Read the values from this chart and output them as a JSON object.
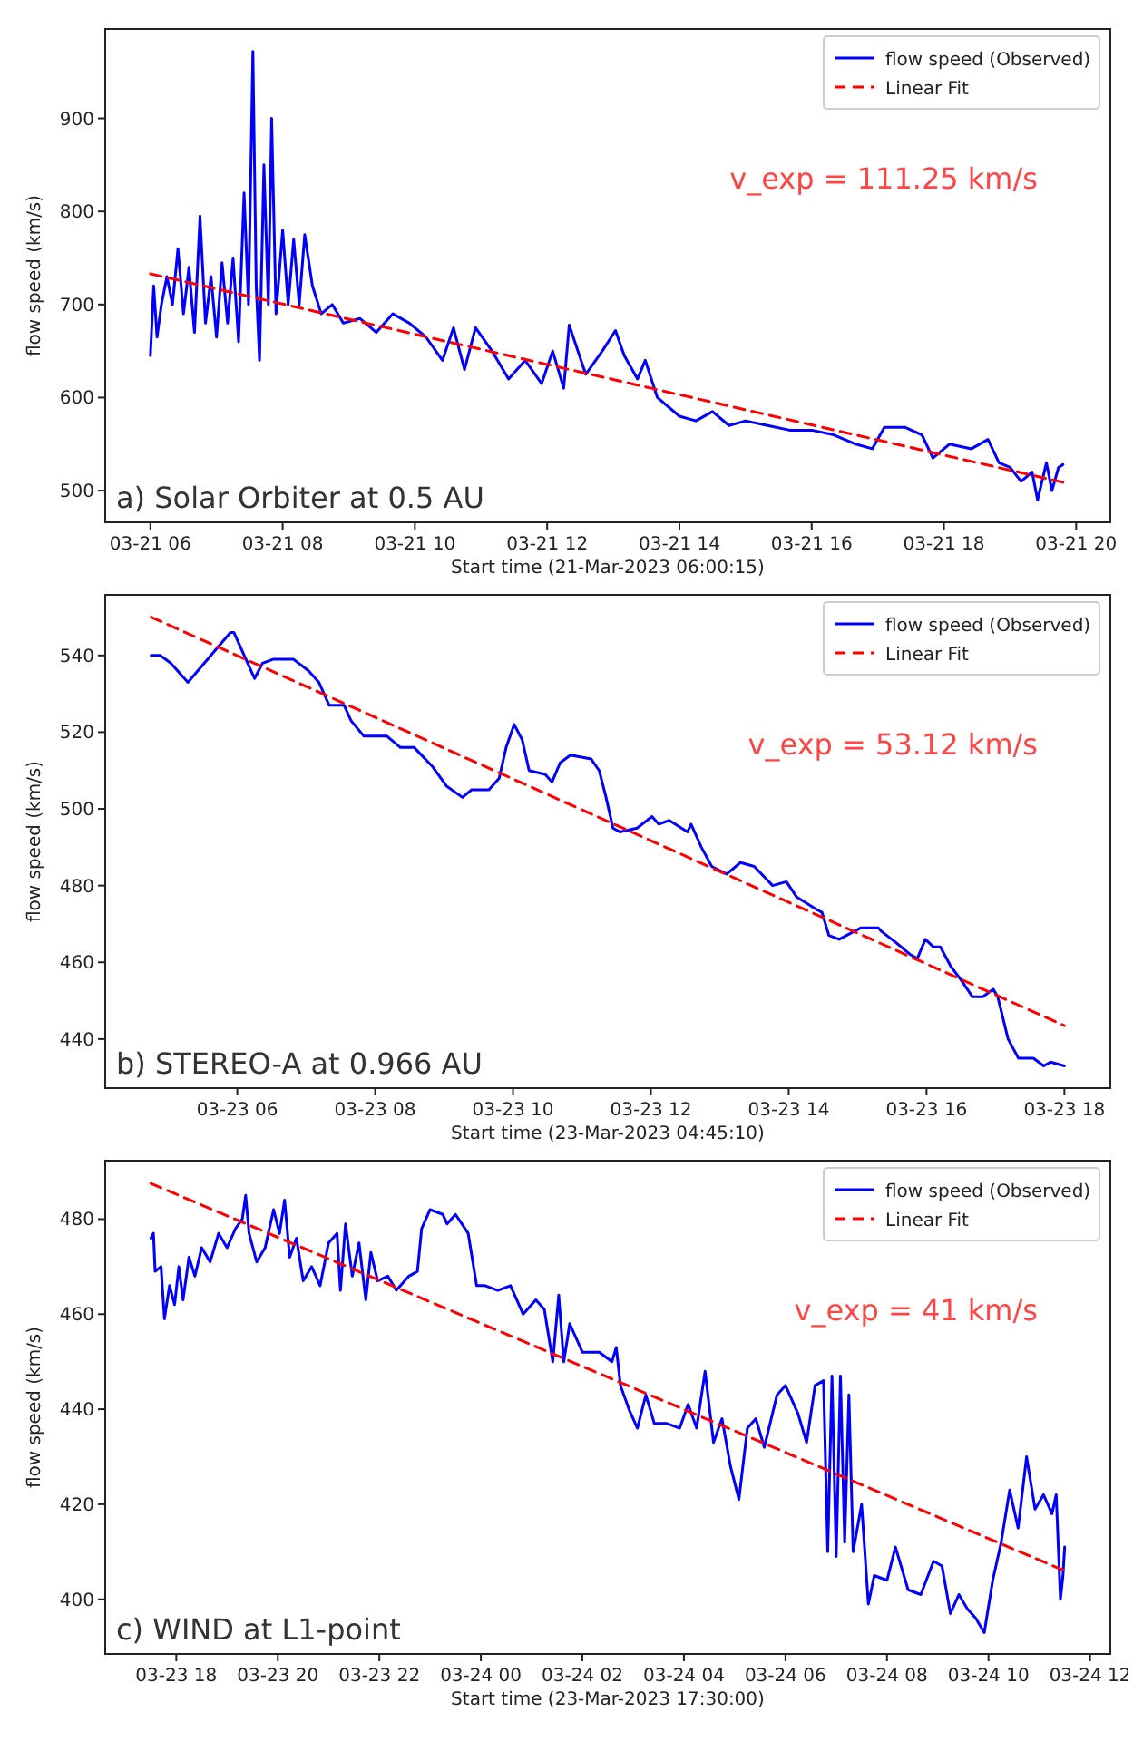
{
  "chart_data": [
    {
      "type": "line",
      "xlabel": "Start time (21-Mar-2023 06:00:15)",
      "ylabel": "flow speed (km/s)",
      "legend": "top right",
      "xlim": [
        "2023-03-21T05:19",
        "2023-03-21T20:31"
      ],
      "ylim": [
        466,
        996
      ],
      "yticks": [
        500,
        600,
        700,
        800,
        900
      ],
      "xticks": [
        {
          "value": "2023-03-21T06:00",
          "label": "03-21 06"
        },
        {
          "value": "2023-03-21T08:00",
          "label": "03-21 08"
        },
        {
          "value": "2023-03-21T10:00",
          "label": "03-21 10"
        },
        {
          "value": "2023-03-21T12:00",
          "label": "03-21 12"
        },
        {
          "value": "2023-03-21T14:00",
          "label": "03-21 14"
        },
        {
          "value": "2023-03-21T16:00",
          "label": "03-21 16"
        },
        {
          "value": "2023-03-21T18:00",
          "label": "03-21 18"
        },
        {
          "value": "2023-03-21T20:00",
          "label": "03-21 20"
        }
      ],
      "annotations": [
        "v_exp = 111.25 km/s",
        "a) Solar Orbiter at 0.5 AU"
      ],
      "series": [
        {
          "name": "flow speed (Observed)",
          "color": "#0000ff",
          "line_style": "solid",
          "x": [
            "2023-03-21T06:00",
            "2023-03-21T06:03",
            "2023-03-21T06:06",
            "2023-03-21T06:10",
            "2023-03-21T06:15",
            "2023-03-21T06:20",
            "2023-03-21T06:25",
            "2023-03-21T06:30",
            "2023-03-21T06:35",
            "2023-03-21T06:40",
            "2023-03-21T06:45",
            "2023-03-21T06:50",
            "2023-03-21T06:55",
            "2023-03-21T07:00",
            "2023-03-21T07:05",
            "2023-03-21T07:10",
            "2023-03-21T07:15",
            "2023-03-21T07:20",
            "2023-03-21T07:25",
            "2023-03-21T07:29",
            "2023-03-21T07:33",
            "2023-03-21T07:36",
            "2023-03-21T07:39",
            "2023-03-21T07:43",
            "2023-03-21T07:47",
            "2023-03-21T07:50",
            "2023-03-21T07:54",
            "2023-03-21T08:00",
            "2023-03-21T08:05",
            "2023-03-21T08:10",
            "2023-03-21T08:15",
            "2023-03-21T08:20",
            "2023-03-21T08:27",
            "2023-03-21T08:35",
            "2023-03-21T08:45",
            "2023-03-21T08:55",
            "2023-03-21T09:10",
            "2023-03-21T09:25",
            "2023-03-21T09:40",
            "2023-03-21T09:55",
            "2023-03-21T10:10",
            "2023-03-21T10:25",
            "2023-03-21T10:35",
            "2023-03-21T10:45",
            "2023-03-21T10:55",
            "2023-03-21T11:10",
            "2023-03-21T11:25",
            "2023-03-21T11:40",
            "2023-03-21T11:55",
            "2023-03-21T12:05",
            "2023-03-21T12:15",
            "2023-03-21T12:20",
            "2023-03-21T12:35",
            "2023-03-21T12:50",
            "2023-03-21T13:02",
            "2023-03-21T13:10",
            "2023-03-21T13:22",
            "2023-03-21T13:29",
            "2023-03-21T13:40",
            "2023-03-21T14:00",
            "2023-03-21T14:15",
            "2023-03-21T14:30",
            "2023-03-21T14:45",
            "2023-03-21T15:00",
            "2023-03-21T15:20",
            "2023-03-21T15:40",
            "2023-03-21T16:00",
            "2023-03-21T16:20",
            "2023-03-21T16:40",
            "2023-03-21T16:55",
            "2023-03-21T17:06",
            "2023-03-21T17:25",
            "2023-03-21T17:40",
            "2023-03-21T17:50",
            "2023-03-21T18:05",
            "2023-03-21T18:25",
            "2023-03-21T18:40",
            "2023-03-21T18:50",
            "2023-03-21T19:00",
            "2023-03-21T19:10",
            "2023-03-21T19:20",
            "2023-03-21T19:25",
            "2023-03-21T19:33",
            "2023-03-21T19:38",
            "2023-03-21T19:44",
            "2023-03-21T19:48"
          ],
          "values": [
            645,
            720,
            665,
            700,
            730,
            700,
            760,
            690,
            740,
            670,
            795,
            680,
            730,
            665,
            745,
            680,
            750,
            660,
            820,
            700,
            972,
            720,
            640,
            850,
            700,
            900,
            690,
            780,
            700,
            770,
            700,
            775,
            720,
            690,
            700,
            680,
            685,
            670,
            690,
            680,
            665,
            640,
            675,
            630,
            675,
            650,
            620,
            640,
            615,
            650,
            610,
            678,
            625,
            650,
            672,
            645,
            620,
            640,
            600,
            580,
            575,
            585,
            570,
            575,
            570,
            565,
            565,
            560,
            550,
            545,
            568,
            568,
            560,
            535,
            550,
            545,
            555,
            530,
            525,
            510,
            520,
            490,
            530,
            500,
            525,
            528
          ]
        },
        {
          "name": "Linear Fit",
          "color": "#ff0000",
          "line_style": "dashed",
          "x": [
            "2023-03-21T06:00",
            "2023-03-21T19:48"
          ],
          "values": [
            733,
            509
          ]
        }
      ]
    },
    {
      "type": "line",
      "xlabel": "Start time (23-Mar-2023 04:45:10)",
      "ylabel": "flow speed (km/s)",
      "legend": "top right",
      "xlim": [
        "2023-03-23T04:05",
        "2023-03-23T18:40"
      ],
      "ylim": [
        427.2,
        555.8
      ],
      "yticks": [
        440,
        460,
        480,
        500,
        520,
        540
      ],
      "xticks": [
        {
          "value": "2023-03-23T06:00",
          "label": "03-23 06"
        },
        {
          "value": "2023-03-23T08:00",
          "label": "03-23 08"
        },
        {
          "value": "2023-03-23T10:00",
          "label": "03-23 10"
        },
        {
          "value": "2023-03-23T12:00",
          "label": "03-23 12"
        },
        {
          "value": "2023-03-23T14:00",
          "label": "03-23 14"
        },
        {
          "value": "2023-03-23T16:00",
          "label": "03-23 16"
        },
        {
          "value": "2023-03-23T18:00",
          "label": "03-23 18"
        }
      ],
      "annotations": [
        "v_exp = 53.12 km/s",
        "b) STEREO-A at 0.966 AU"
      ],
      "series": [
        {
          "name": "flow speed (Observed)",
          "color": "#0000ff",
          "line_style": "solid",
          "x": [
            "2023-03-23T04:45",
            "2023-03-23T04:53",
            "2023-03-23T05:02",
            "2023-03-23T05:17",
            "2023-03-23T05:54",
            "2023-03-23T05:57",
            "2023-03-23T06:06",
            "2023-03-23T06:15",
            "2023-03-23T06:22",
            "2023-03-23T06:31",
            "2023-03-23T06:49",
            "2023-03-23T07:02",
            "2023-03-23T07:11",
            "2023-03-23T07:20",
            "2023-03-23T07:33",
            "2023-03-23T07:39",
            "2023-03-23T07:50",
            "2023-03-23T08:10",
            "2023-03-23T08:22",
            "2023-03-23T08:34",
            "2023-03-23T08:50",
            "2023-03-23T09:02",
            "2023-03-23T09:16",
            "2023-03-23T09:24",
            "2023-03-23T09:39",
            "2023-03-23T09:48",
            "2023-03-23T09:54",
            "2023-03-23T10:01",
            "2023-03-23T10:08",
            "2023-03-23T10:14",
            "2023-03-23T10:28",
            "2023-03-23T10:34",
            "2023-03-23T10:41",
            "2023-03-23T10:50",
            "2023-03-23T11:08",
            "2023-03-23T11:15",
            "2023-03-23T11:21",
            "2023-03-23T11:27",
            "2023-03-23T11:33",
            "2023-03-23T11:48",
            "2023-03-23T12:01",
            "2023-03-23T12:07",
            "2023-03-23T12:16",
            "2023-03-23T12:32",
            "2023-03-23T12:35",
            "2023-03-23T12:44",
            "2023-03-23T12:53",
            "2023-03-23T13:06",
            "2023-03-23T13:18",
            "2023-03-23T13:30",
            "2023-03-23T13:46",
            "2023-03-23T13:58",
            "2023-03-23T14:07",
            "2023-03-23T14:23",
            "2023-03-23T14:29",
            "2023-03-23T14:35",
            "2023-03-23T14:44",
            "2023-03-23T15:03",
            "2023-03-23T15:18",
            "2023-03-23T15:21",
            "2023-03-23T15:34",
            "2023-03-23T15:46",
            "2023-03-23T15:52",
            "2023-03-23T15:59",
            "2023-03-23T16:06",
            "2023-03-23T16:12",
            "2023-03-23T16:21",
            "2023-03-23T16:31",
            "2023-03-23T16:40",
            "2023-03-23T16:49",
            "2023-03-23T16:58",
            "2023-03-23T17:02",
            "2023-03-23T17:11",
            "2023-03-23T17:20",
            "2023-03-23T17:33",
            "2023-03-23T17:42",
            "2023-03-23T17:48",
            "2023-03-23T18:00"
          ],
          "values": [
            540,
            540,
            538,
            533,
            546,
            546,
            540,
            534,
            538,
            539,
            539,
            536,
            533,
            527,
            527,
            523,
            519,
            519,
            516,
            516,
            511,
            506,
            503,
            505,
            505,
            508,
            516,
            522,
            518,
            510,
            509,
            507,
            512,
            514,
            513,
            510,
            503,
            495,
            494,
            495,
            498,
            496,
            497,
            494,
            496,
            490,
            485,
            483,
            486,
            485,
            480,
            481,
            477,
            474,
            473,
            467,
            466,
            469,
            469,
            468,
            465,
            462,
            461,
            466,
            464,
            464,
            459,
            455,
            451,
            451,
            453,
            451,
            440,
            435,
            435,
            433,
            434,
            433
          ]
        },
        {
          "name": "Linear Fit",
          "color": "#ff0000",
          "line_style": "dashed",
          "x": [
            "2023-03-23T04:45",
            "2023-03-23T18:00"
          ],
          "values": [
            550,
            443.5
          ]
        }
      ]
    },
    {
      "type": "line",
      "xlabel": "Start time (23-Mar-2023 17:30:00)",
      "ylabel": "flow speed (km/s)",
      "legend": "top right",
      "xlim": [
        "2023-03-23T16:36",
        "2023-03-24T12:24"
      ],
      "ylim": [
        388.5,
        492.3
      ],
      "yticks": [
        400,
        420,
        440,
        460,
        480
      ],
      "xticks": [
        {
          "value": "2023-03-23T18:00",
          "label": "03-23 18"
        },
        {
          "value": "2023-03-23T20:00",
          "label": "03-23 20"
        },
        {
          "value": "2023-03-23T22:00",
          "label": "03-23 22"
        },
        {
          "value": "2023-03-24T00:00",
          "label": "03-24 00"
        },
        {
          "value": "2023-03-24T02:00",
          "label": "03-24 02"
        },
        {
          "value": "2023-03-24T04:00",
          "label": "03-24 04"
        },
        {
          "value": "2023-03-24T06:00",
          "label": "03-24 06"
        },
        {
          "value": "2023-03-24T08:00",
          "label": "03-24 08"
        },
        {
          "value": "2023-03-24T10:00",
          "label": "03-24 10"
        },
        {
          "value": "2023-03-24T12:00",
          "label": "03-24 12"
        }
      ],
      "annotations": [
        "v_exp = 41 km/s",
        "c) WIND at L1-point"
      ],
      "series": [
        {
          "name": "flow speed (Observed)",
          "color": "#0000ff",
          "line_style": "solid",
          "x": [
            "2023-03-23T17:30",
            "2023-03-23T17:33",
            "2023-03-23T17:35",
            "2023-03-23T17:42",
            "2023-03-23T17:46",
            "2023-03-23T17:52",
            "2023-03-23T17:58",
            "2023-03-23T18:03",
            "2023-03-23T18:08",
            "2023-03-23T18:15",
            "2023-03-23T18:22",
            "2023-03-23T18:30",
            "2023-03-23T18:40",
            "2023-03-23T18:50",
            "2023-03-23T19:00",
            "2023-03-23T19:10",
            "2023-03-23T19:18",
            "2023-03-23T19:22",
            "2023-03-23T19:26",
            "2023-03-23T19:35",
            "2023-03-23T19:45",
            "2023-03-23T19:55",
            "2023-03-23T20:02",
            "2023-03-23T20:08",
            "2023-03-23T20:14",
            "2023-03-23T20:22",
            "2023-03-23T20:30",
            "2023-03-23T20:40",
            "2023-03-23T20:50",
            "2023-03-23T21:00",
            "2023-03-23T21:10",
            "2023-03-23T21:14",
            "2023-03-23T21:20",
            "2023-03-23T21:28",
            "2023-03-23T21:36",
            "2023-03-23T21:44",
            "2023-03-23T21:50",
            "2023-03-23T21:58",
            "2023-03-23T22:10",
            "2023-03-23T22:20",
            "2023-03-23T22:35",
            "2023-03-23T22:45",
            "2023-03-23T22:50",
            "2023-03-23T23:00",
            "2023-03-23T23:15",
            "2023-03-23T23:20",
            "2023-03-23T23:30",
            "2023-03-23T23:45",
            "2023-03-23T23:55",
            "2023-03-24T00:05",
            "2023-03-24T00:20",
            "2023-03-24T00:35",
            "2023-03-24T00:50",
            "2023-03-24T01:05",
            "2023-03-24T01:15",
            "2023-03-24T01:25",
            "2023-03-24T01:32",
            "2023-03-24T01:38",
            "2023-03-24T01:45",
            "2023-03-24T02:00",
            "2023-03-24T02:20",
            "2023-03-24T02:35",
            "2023-03-24T02:40",
            "2023-03-24T02:45",
            "2023-03-24T02:55",
            "2023-03-24T03:05",
            "2023-03-24T03:15",
            "2023-03-24T03:25",
            "2023-03-24T03:40",
            "2023-03-24T03:55",
            "2023-03-24T04:05",
            "2023-03-24T04:15",
            "2023-03-24T04:25",
            "2023-03-24T04:35",
            "2023-03-24T04:45",
            "2023-03-24T04:55",
            "2023-03-24T05:05",
            "2023-03-24T05:15",
            "2023-03-24T05:25",
            "2023-03-24T05:35",
            "2023-03-24T05:50",
            "2023-03-24T06:00",
            "2023-03-24T06:15",
            "2023-03-24T06:25",
            "2023-03-24T06:35",
            "2023-03-24T06:45",
            "2023-03-24T06:50",
            "2023-03-24T06:55",
            "2023-03-24T07:00",
            "2023-03-24T07:05",
            "2023-03-24T07:10",
            "2023-03-24T07:15",
            "2023-03-24T07:20",
            "2023-03-24T07:30",
            "2023-03-24T07:38",
            "2023-03-24T07:45",
            "2023-03-24T08:00",
            "2023-03-24T08:10",
            "2023-03-24T08:25",
            "2023-03-24T08:40",
            "2023-03-24T08:55",
            "2023-03-24T09:05",
            "2023-03-24T09:15",
            "2023-03-24T09:25",
            "2023-03-24T09:35",
            "2023-03-24T09:45",
            "2023-03-24T09:55",
            "2023-03-24T10:05",
            "2023-03-24T10:15",
            "2023-03-24T10:25",
            "2023-03-24T10:35",
            "2023-03-24T10:45",
            "2023-03-24T10:55",
            "2023-03-24T11:05",
            "2023-03-24T11:15",
            "2023-03-24T11:20",
            "2023-03-24T11:25",
            "2023-03-24T11:28",
            "2023-03-24T11:30"
          ],
          "values": [
            476,
            477,
            469,
            470,
            459,
            466,
            462,
            470,
            463,
            472,
            468,
            474,
            471,
            477,
            474,
            478,
            480,
            485,
            477,
            471,
            474,
            482,
            477,
            484,
            472,
            476,
            467,
            470,
            466,
            475,
            477,
            465,
            479,
            468,
            475,
            463,
            473,
            467,
            468,
            465,
            468,
            469,
            478,
            482,
            481,
            479,
            481,
            477,
            466,
            466,
            465,
            466,
            460,
            463,
            461,
            450,
            464,
            450,
            458,
            452,
            452,
            450,
            453,
            445,
            440,
            436,
            443,
            437,
            437,
            436,
            441,
            436,
            448,
            433,
            438,
            428,
            421,
            436,
            438,
            432,
            443,
            445,
            439,
            433,
            445,
            446,
            410,
            447,
            409,
            447,
            412,
            443,
            410,
            420,
            399,
            405,
            404,
            411,
            402,
            401,
            408,
            407,
            397,
            401,
            398,
            396,
            393,
            404,
            412,
            423,
            415,
            430,
            419,
            422,
            418,
            422,
            400,
            405,
            411
          ]
        },
        {
          "name": "Linear Fit",
          "color": "#ff0000",
          "line_style": "dashed",
          "x": [
            "2023-03-23T17:30",
            "2023-03-24T11:30"
          ],
          "values": [
            487.5,
            406
          ]
        }
      ]
    }
  ]
}
